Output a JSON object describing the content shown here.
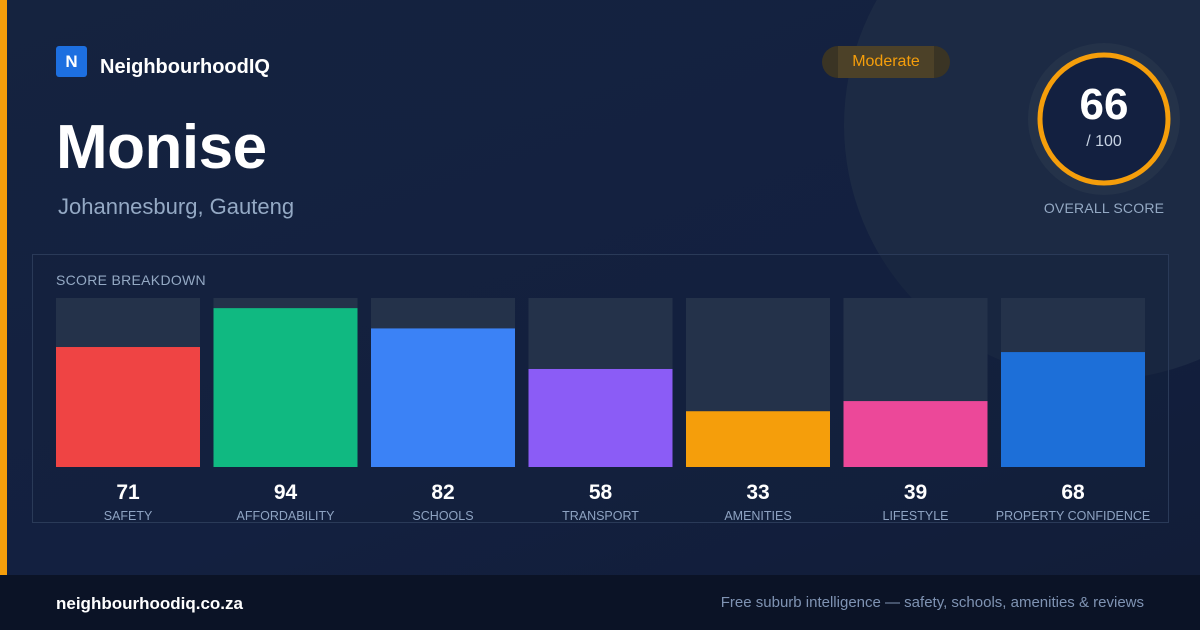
{
  "brand": {
    "logo_letter": "N",
    "name": "NeighbourhoodIQ"
  },
  "suburb": {
    "name": "Monise",
    "location": "Johannesburg, Gauteng"
  },
  "rating": {
    "label": "Moderate",
    "color": "#f59e0b"
  },
  "overall": {
    "score": "66",
    "max_label": "/ 100",
    "label": "OVERALL SCORE",
    "value": 66,
    "max": 100
  },
  "breakdown": {
    "title": "SCORE BREAKDOWN"
  },
  "chart_data": {
    "type": "bar",
    "title": "SCORE BREAKDOWN",
    "categories": [
      "SAFETY",
      "AFFORDABILITY",
      "SCHOOLS",
      "TRANSPORT",
      "AMENITIES",
      "LIFESTYLE",
      "PROPERTY CONFIDENCE"
    ],
    "values": [
      71,
      94,
      82,
      58,
      33,
      39,
      68
    ],
    "colors": [
      "#ef4444",
      "#10b981",
      "#3b82f6",
      "#8b5cf6",
      "#f59e0b",
      "#ec4899",
      "#1d6fd8"
    ],
    "ylim": [
      0,
      100
    ],
    "grid": false,
    "legend": "none"
  },
  "footer": {
    "url": "neighbourhoodiq.co.za",
    "tagline": "Free suburb intelligence — safety, schools, amenities & reviews"
  }
}
